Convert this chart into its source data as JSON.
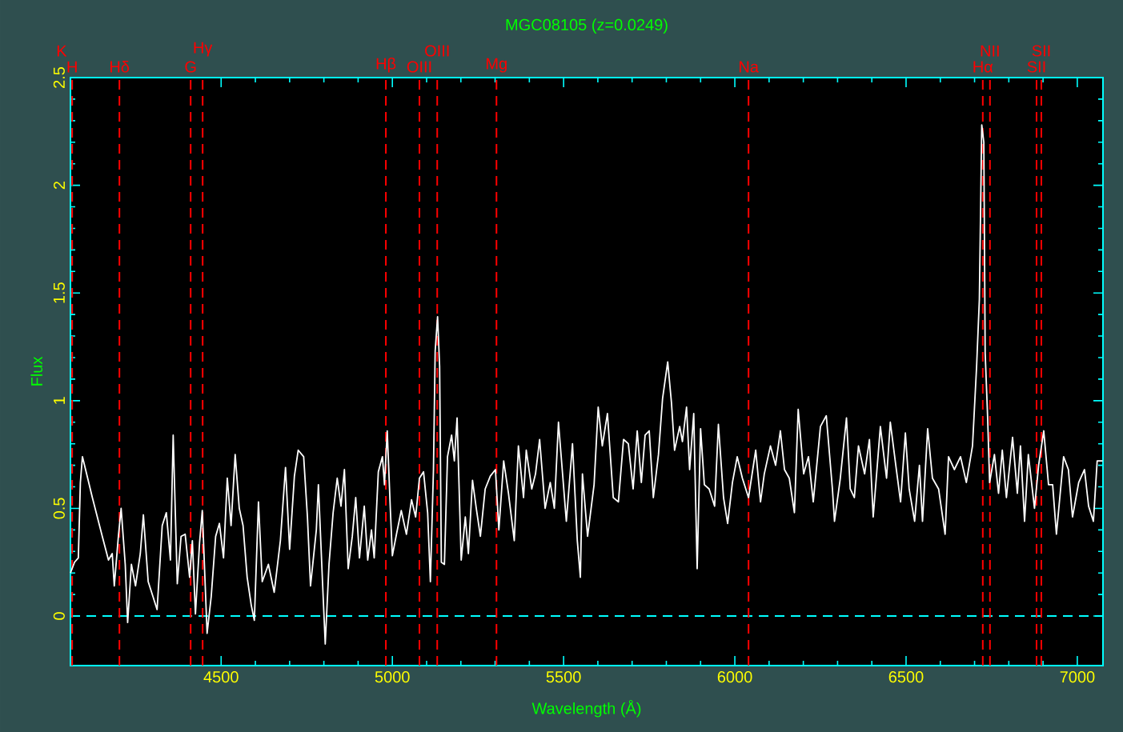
{
  "chart_data": {
    "type": "line",
    "title": "MGC08105 (z=0.0249)",
    "xlabel": "Wavelength (Å)",
    "ylabel": "Flux",
    "xlim": [
      4060,
      7075
    ],
    "ylim": [
      -0.23,
      2.5
    ],
    "xticks": [
      4500,
      5000,
      5500,
      6000,
      6500,
      7000
    ],
    "yticks": [
      0,
      0.5,
      1,
      1.5,
      2,
      2.5
    ],
    "color": "#ffffff",
    "x": [
      4060,
      4072,
      4083,
      4089,
      4095,
      4124,
      4153,
      4171,
      4182,
      4188,
      4200,
      4208,
      4220,
      4227,
      4238,
      4250,
      4264,
      4273,
      4287,
      4301,
      4313,
      4328,
      4340,
      4352,
      4360,
      4372,
      4383,
      4395,
      4408,
      4416,
      4425,
      4437,
      4445,
      4459,
      4471,
      4484,
      4495,
      4507,
      4518,
      4529,
      4541,
      4553,
      4564,
      4576,
      4588,
      4597,
      4609,
      4620,
      4638,
      4655,
      4673,
      4688,
      4700,
      4714,
      4725,
      4741,
      4752,
      4761,
      4778,
      4784,
      4796,
      4804,
      4815,
      4827,
      4839,
      4850,
      4860,
      4871,
      4883,
      4893,
      4904,
      4918,
      4928,
      4939,
      4947,
      4959,
      4971,
      4977,
      4985,
      4994,
      5000,
      5012,
      5026,
      5041,
      5056,
      5068,
      5079,
      5091,
      5103,
      5111,
      5120,
      5125,
      5132,
      5138,
      5143,
      5152,
      5161,
      5173,
      5181,
      5189,
      5201,
      5213,
      5222,
      5234,
      5245,
      5257,
      5271,
      5286,
      5301,
      5311,
      5325,
      5339,
      5356,
      5368,
      5383,
      5391,
      5407,
      5418,
      5430,
      5446,
      5461,
      5473,
      5485,
      5496,
      5508,
      5526,
      5540,
      5549,
      5555,
      5570,
      5589,
      5601,
      5613,
      5628,
      5645,
      5660,
      5675,
      5689,
      5703,
      5715,
      5727,
      5738,
      5750,
      5762,
      5777,
      5789,
      5804,
      5815,
      5824,
      5839,
      5847,
      5859,
      5868,
      5880,
      5890,
      5900,
      5911,
      5925,
      5941,
      5952,
      5967,
      5979,
      5993,
      6007,
      6022,
      6040,
      6061,
      6075,
      6086,
      6104,
      6119,
      6133,
      6145,
      6159,
      6174,
      6185,
      6201,
      6215,
      6229,
      6250,
      6267,
      6285,
      6291,
      6308,
      6326,
      6337,
      6349,
      6361,
      6379,
      6393,
      6404,
      6425,
      6443,
      6454,
      6470,
      6484,
      6498,
      6509,
      6525,
      6539,
      6548,
      6563,
      6577,
      6595,
      6614,
      6624,
      6641,
      6659,
      6676,
      6694,
      6706,
      6714,
      6721,
      6727,
      6731,
      6738,
      6744,
      6758,
      6770,
      6781,
      6793,
      6811,
      6825,
      6834,
      6846,
      6857,
      6875,
      6887,
      6902,
      6916,
      6928,
      6939,
      6960,
      6974,
      6986,
      7004,
      7021,
      7033,
      7047,
      7058,
      7074
    ],
    "values": [
      0.2,
      0.25,
      0.27,
      0.62,
      0.74,
      0.55,
      0.37,
      0.26,
      0.29,
      0.14,
      0.37,
      0.5,
      0.24,
      -0.03,
      0.24,
      0.14,
      0.29,
      0.47,
      0.16,
      0.09,
      0.03,
      0.42,
      0.48,
      0.26,
      0.84,
      0.15,
      0.37,
      0.38,
      0.18,
      0.35,
      0.01,
      0.34,
      0.49,
      -0.08,
      0.09,
      0.37,
      0.43,
      0.27,
      0.64,
      0.42,
      0.75,
      0.5,
      0.42,
      0.18,
      0.05,
      -0.02,
      0.53,
      0.16,
      0.24,
      0.11,
      0.35,
      0.69,
      0.31,
      0.65,
      0.77,
      0.74,
      0.46,
      0.14,
      0.4,
      0.61,
      0.16,
      -0.13,
      0.24,
      0.48,
      0.64,
      0.51,
      0.68,
      0.22,
      0.37,
      0.55,
      0.27,
      0.51,
      0.26,
      0.4,
      0.27,
      0.67,
      0.74,
      0.61,
      0.86,
      0.5,
      0.28,
      0.38,
      0.49,
      0.38,
      0.54,
      0.46,
      0.64,
      0.67,
      0.48,
      0.16,
      0.68,
      1.23,
      1.39,
      1.16,
      0.25,
      0.24,
      0.74,
      0.84,
      0.72,
      0.92,
      0.26,
      0.46,
      0.29,
      0.63,
      0.5,
      0.37,
      0.59,
      0.65,
      0.68,
      0.4,
      0.72,
      0.57,
      0.35,
      0.79,
      0.55,
      0.77,
      0.59,
      0.66,
      0.82,
      0.5,
      0.62,
      0.5,
      0.9,
      0.68,
      0.44,
      0.8,
      0.35,
      0.18,
      0.66,
      0.37,
      0.61,
      0.97,
      0.79,
      0.94,
      0.55,
      0.53,
      0.82,
      0.8,
      0.59,
      0.86,
      0.62,
      0.84,
      0.86,
      0.55,
      0.75,
      1.01,
      1.18,
      0.99,
      0.77,
      0.88,
      0.81,
      0.97,
      0.68,
      0.94,
      0.22,
      0.87,
      0.61,
      0.59,
      0.51,
      0.89,
      0.55,
      0.43,
      0.62,
      0.74,
      0.64,
      0.55,
      0.77,
      0.53,
      0.66,
      0.79,
      0.7,
      0.86,
      0.68,
      0.64,
      0.48,
      0.96,
      0.66,
      0.74,
      0.53,
      0.88,
      0.93,
      0.59,
      0.44,
      0.64,
      0.92,
      0.59,
      0.55,
      0.79,
      0.66,
      0.82,
      0.46,
      0.88,
      0.64,
      0.9,
      0.7,
      0.53,
      0.85,
      0.59,
      0.44,
      0.7,
      0.44,
      0.87,
      0.64,
      0.59,
      0.38,
      0.74,
      0.68,
      0.74,
      0.62,
      0.79,
      1.16,
      1.47,
      2.28,
      2.2,
      1.22,
      0.93,
      0.62,
      0.75,
      0.57,
      0.77,
      0.55,
      0.83,
      0.57,
      0.79,
      0.44,
      0.75,
      0.5,
      0.7,
      0.86,
      0.61,
      0.61,
      0.38,
      0.74,
      0.68,
      0.46,
      0.62,
      0.68,
      0.51,
      0.44,
      0.72,
      0.72
    ],
    "ref_lines": [
      {
        "axis": "y",
        "value": 0,
        "color": "#00ffff",
        "line_style": "dashed"
      },
      {
        "axis": "x",
        "value": 4065,
        "label": "H",
        "color": "#ff0000",
        "line_style": "dashed"
      },
      {
        "axis": "x",
        "value": 4203,
        "label": "Hδ",
        "color": "#ff0000",
        "line_style": "dashed"
      },
      {
        "axis": "x",
        "value": 4411,
        "label": "G",
        "color": "#ff0000",
        "line_style": "dashed"
      },
      {
        "axis": "x",
        "value": 4446,
        "label": "Hγ",
        "color": "#ff0000",
        "line_style": "dashed"
      },
      {
        "axis": "x",
        "value": 4981,
        "label": "Hβ",
        "color": "#ff0000",
        "line_style": "dashed"
      },
      {
        "axis": "x",
        "value": 5079,
        "label": "OIII",
        "color": "#ff0000",
        "line_style": "dashed"
      },
      {
        "axis": "x",
        "value": 5131,
        "label": "OIII",
        "color": "#ff0000",
        "line_style": "dashed"
      },
      {
        "axis": "x",
        "value": 5304,
        "label": "Mg",
        "color": "#ff0000",
        "line_style": "dashed"
      },
      {
        "axis": "x",
        "value": 6040,
        "label": "Na",
        "color": "#ff0000",
        "line_style": "dashed"
      },
      {
        "axis": "x",
        "value": 6724,
        "label": "Hα",
        "color": "#ff0000",
        "line_style": "dashed"
      },
      {
        "axis": "x",
        "value": 6745,
        "label": "NII",
        "color": "#ff0000",
        "line_style": "dashed"
      },
      {
        "axis": "x",
        "value": 6881,
        "label": "SII",
        "color": "#ff0000",
        "line_style": "dashed"
      },
      {
        "axis": "x",
        "value": 6895,
        "label": "SII",
        "color": "#ff0000",
        "line_style": "dashed"
      }
    ],
    "annotations": [
      "K"
    ]
  }
}
